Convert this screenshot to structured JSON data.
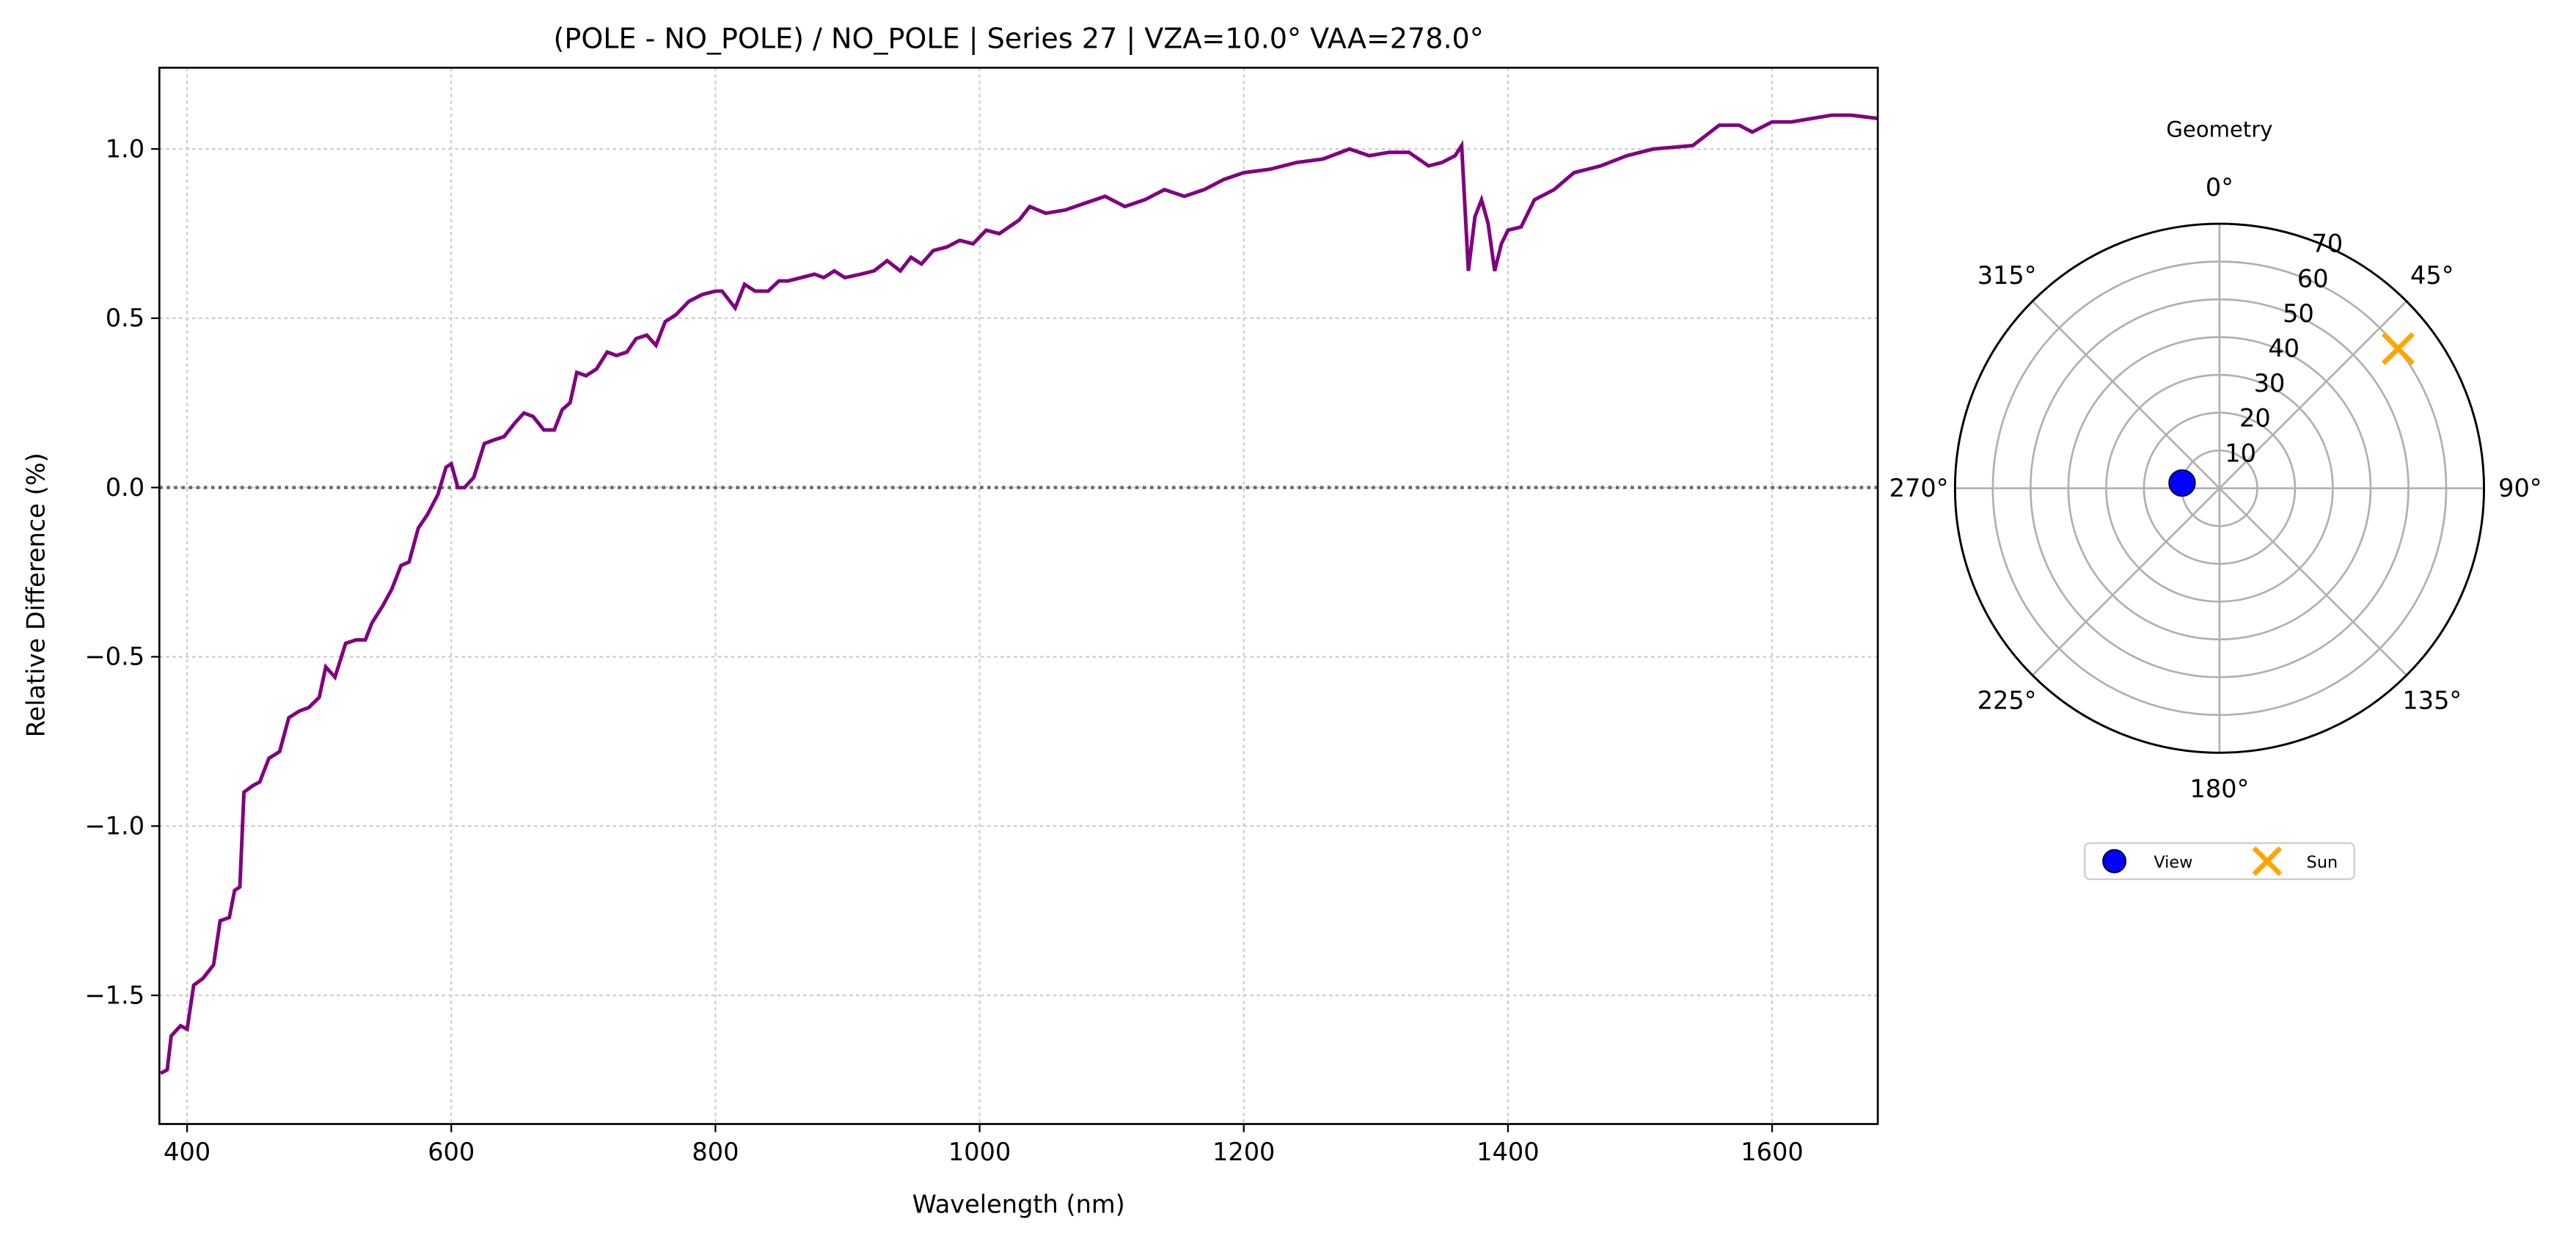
{
  "chart_data": [
    {
      "type": "line",
      "title": "(POLE - NO_POLE) / NO_POLE | Series 27 | VZA=10.0° VAA=278.0°",
      "xlabel": "Wavelength (nm)",
      "ylabel": "Relative Difference (%)",
      "xlim": [
        379,
        1680
      ],
      "ylim": [
        -1.88,
        1.24
      ],
      "xticks": [
        400,
        600,
        800,
        1000,
        1200,
        1400,
        1600
      ],
      "xtick_labels": [
        "400",
        "600",
        "800",
        "1000",
        "1200",
        "1400",
        "1600"
      ],
      "yticks": [
        -1.5,
        -1.0,
        -0.5,
        0.0,
        0.5,
        1.0
      ],
      "ytick_labels": [
        "−1.5",
        "−1.0",
        "−0.5",
        "0.0",
        "0.5",
        "1.0"
      ],
      "grid": true,
      "reference_line": 0.0,
      "series": [
        {
          "name": "relative difference",
          "color": "#800080",
          "x": [
            380,
            385,
            388,
            395,
            400,
            405,
            412,
            420,
            425,
            432,
            436,
            440,
            443,
            450,
            455,
            462,
            470,
            477,
            485,
            492,
            500,
            505,
            512,
            520,
            528,
            535,
            540,
            548,
            555,
            562,
            568,
            575,
            582,
            590,
            596,
            600,
            605,
            610,
            617,
            625,
            632,
            640,
            648,
            655,
            662,
            670,
            678,
            684,
            690,
            695,
            702,
            710,
            718,
            725,
            733,
            740,
            748,
            755,
            762,
            770,
            780,
            790,
            800,
            805,
            815,
            822,
            830,
            840,
            848,
            855,
            865,
            875,
            882,
            890,
            898,
            910,
            920,
            930,
            940,
            948,
            956,
            965,
            975,
            985,
            995,
            1005,
            1015,
            1030,
            1038,
            1050,
            1065,
            1080,
            1095,
            1110,
            1125,
            1140,
            1155,
            1170,
            1185,
            1200,
            1220,
            1240,
            1260,
            1280,
            1295,
            1310,
            1325,
            1340,
            1350,
            1360,
            1365,
            1370,
            1375,
            1380,
            1385,
            1390,
            1395,
            1400,
            1410,
            1420,
            1435,
            1450,
            1470,
            1490,
            1510,
            1540,
            1560,
            1575,
            1585,
            1600,
            1615,
            1630,
            1645,
            1660,
            1680
          ],
          "y": [
            -1.73,
            -1.72,
            -1.62,
            -1.59,
            -1.6,
            -1.47,
            -1.45,
            -1.41,
            -1.28,
            -1.27,
            -1.19,
            -1.18,
            -0.9,
            -0.88,
            -0.87,
            -0.8,
            -0.78,
            -0.68,
            -0.66,
            -0.65,
            -0.62,
            -0.53,
            -0.56,
            -0.46,
            -0.45,
            -0.45,
            -0.4,
            -0.35,
            -0.3,
            -0.23,
            -0.22,
            -0.12,
            -0.08,
            -0.02,
            0.06,
            0.07,
            0.0,
            0.0,
            0.03,
            0.13,
            0.14,
            0.15,
            0.19,
            0.22,
            0.21,
            0.17,
            0.17,
            0.23,
            0.25,
            0.34,
            0.33,
            0.35,
            0.4,
            0.39,
            0.4,
            0.44,
            0.45,
            0.42,
            0.49,
            0.51,
            0.55,
            0.57,
            0.58,
            0.58,
            0.53,
            0.6,
            0.58,
            0.58,
            0.61,
            0.61,
            0.62,
            0.63,
            0.62,
            0.64,
            0.62,
            0.63,
            0.64,
            0.67,
            0.64,
            0.68,
            0.66,
            0.7,
            0.71,
            0.73,
            0.72,
            0.76,
            0.75,
            0.79,
            0.83,
            0.81,
            0.82,
            0.84,
            0.86,
            0.83,
            0.85,
            0.88,
            0.86,
            0.88,
            0.91,
            0.93,
            0.94,
            0.96,
            0.97,
            1.0,
            0.98,
            0.99,
            0.99,
            0.95,
            0.96,
            0.98,
            1.01,
            0.64,
            0.8,
            0.85,
            0.78,
            0.64,
            0.72,
            0.76,
            0.77,
            0.85,
            0.88,
            0.93,
            0.95,
            0.98,
            1.0,
            1.01,
            1.07,
            1.07,
            1.05,
            1.08,
            1.08,
            1.09,
            1.1,
            1.1,
            1.09
          ]
        }
      ]
    },
    {
      "type": "scatter",
      "subtype": "polar",
      "title": "Geometry",
      "theta_labels": [
        "0°",
        "45°",
        "90°",
        "135°",
        "180°",
        "225°",
        "270°",
        "315°"
      ],
      "r_labels": [
        "10",
        "20",
        "30",
        "40",
        "50",
        "60",
        "70"
      ],
      "rlim": [
        0,
        70
      ],
      "theta_zero": "north",
      "theta_direction": "clockwise",
      "legend": {
        "placement": "bottom",
        "entries": [
          "View",
          "Sun"
        ]
      },
      "points": [
        {
          "name": "View",
          "azimuth_deg": 278,
          "zenith_deg": 10,
          "color": "#0000ff",
          "marker": "circle"
        },
        {
          "name": "Sun",
          "azimuth_deg": 52,
          "zenith_deg": 60,
          "color": "#ffa500",
          "marker": "x"
        }
      ]
    }
  ]
}
